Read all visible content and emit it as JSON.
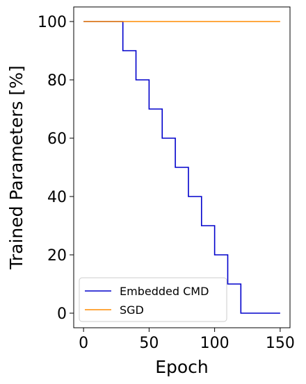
{
  "chart_data": {
    "type": "line",
    "xlabel": "Epoch",
    "ylabel": "Trained Parameters [%]",
    "xlim": [
      -7.5,
      157.5
    ],
    "ylim": [
      -5,
      105
    ],
    "xticks": [
      0,
      50,
      100,
      150
    ],
    "yticks": [
      0,
      20,
      40,
      60,
      80,
      100
    ],
    "grid": false,
    "legend_position": "lower-left",
    "series": [
      {
        "name": "Embedded CMD",
        "color": "#0000cc",
        "x": [
          0,
          30,
          30,
          40,
          40,
          50,
          50,
          60,
          60,
          70,
          70,
          80,
          80,
          90,
          90,
          100,
          100,
          110,
          110,
          120,
          120,
          150
        ],
        "y": [
          100,
          100,
          90,
          90,
          80,
          80,
          70,
          70,
          60,
          60,
          50,
          50,
          40,
          40,
          30,
          30,
          20,
          20,
          10,
          10,
          0,
          0
        ]
      },
      {
        "name": "SGD",
        "color": "#ff8c00",
        "x": [
          0,
          150
        ],
        "y": [
          100,
          100
        ]
      }
    ]
  }
}
